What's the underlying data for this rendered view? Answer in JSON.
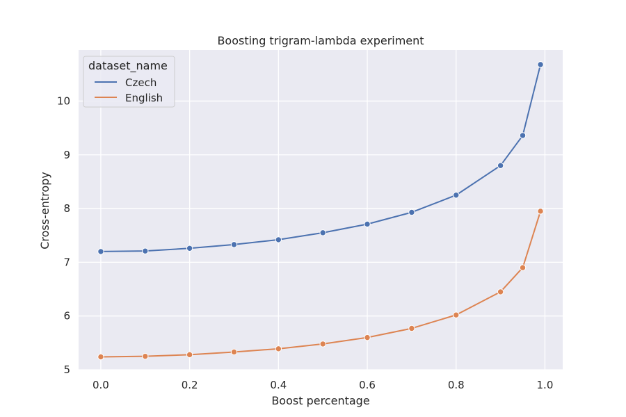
{
  "chart_data": {
    "type": "line",
    "title": "Boosting trigram-lambda experiment",
    "xlabel": "Boost percentage",
    "ylabel": "Cross-entropy",
    "xlim": [
      -0.05,
      1.04
    ],
    "ylim": [
      5.0,
      10.95
    ],
    "x_ticks": [
      0.0,
      0.2,
      0.4,
      0.6,
      0.8,
      1.0
    ],
    "x_tick_labels": [
      "0.0",
      "0.2",
      "0.4",
      "0.6",
      "0.8",
      "1.0"
    ],
    "y_ticks": [
      5,
      6,
      7,
      8,
      9,
      10
    ],
    "y_tick_labels": [
      "5",
      "6",
      "7",
      "8",
      "9",
      "10"
    ],
    "grid": true,
    "background": "#eaeaf2",
    "grid_color": "#ffffff",
    "legend": {
      "title": "dataset_name",
      "position": "top-left"
    },
    "x": [
      0.0,
      0.1,
      0.2,
      0.3,
      0.4,
      0.5,
      0.6,
      0.7,
      0.8,
      0.9,
      0.95,
      0.99
    ],
    "series": [
      {
        "name": "Czech",
        "color": "#4c72b0",
        "values": [
          7.2,
          7.21,
          7.26,
          7.33,
          7.42,
          7.55,
          7.71,
          7.93,
          8.25,
          8.8,
          9.36,
          10.68
        ]
      },
      {
        "name": "English",
        "color": "#dd8452",
        "values": [
          5.24,
          5.25,
          5.28,
          5.33,
          5.39,
          5.48,
          5.6,
          5.77,
          6.02,
          6.45,
          6.9,
          7.95
        ]
      }
    ]
  }
}
